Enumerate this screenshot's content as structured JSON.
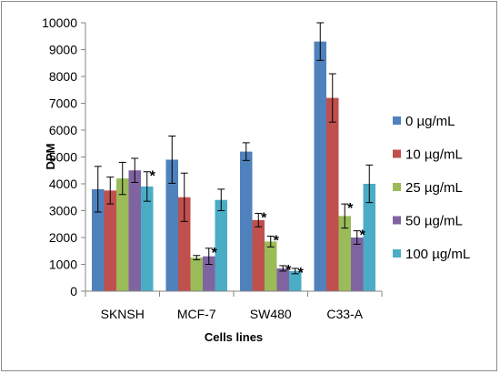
{
  "chart_data": {
    "type": "bar",
    "title": "",
    "xlabel": "Cells lines",
    "ylabel": "DPM",
    "ylim": [
      0,
      10000
    ],
    "yticks": [
      "0",
      "1000",
      "2000",
      "3000",
      "4000",
      "5000",
      "6000",
      "7000",
      "8000",
      "9000",
      "10000"
    ],
    "grid": false,
    "legend_position": "right",
    "categories": [
      "SKNSH",
      "MCF-7",
      "SW480",
      "C33-A"
    ],
    "series": [
      {
        "name": "0 µg/mL",
        "color": "#4F81BD",
        "values": [
          3800,
          4900,
          5200,
          9300
        ],
        "errors": [
          850,
          880,
          330,
          700
        ],
        "significant": [
          false,
          false,
          false,
          false
        ]
      },
      {
        "name": "10 µg/mL",
        "color": "#C0504D",
        "values": [
          3750,
          3500,
          2650,
          7200
        ],
        "errors": [
          500,
          900,
          250,
          900
        ],
        "significant": [
          false,
          false,
          true,
          false
        ]
      },
      {
        "name": "25 µg/mL",
        "color": "#9BBB59",
        "values": [
          4200,
          1250,
          1850,
          2800
        ],
        "errors": [
          600,
          80,
          200,
          450
        ],
        "significant": [
          false,
          false,
          true,
          true
        ]
      },
      {
        "name": "50 µg/mL",
        "color": "#8064A2",
        "values": [
          4500,
          1300,
          850,
          2000
        ],
        "errors": [
          450,
          300,
          100,
          250
        ],
        "significant": [
          false,
          true,
          true,
          true
        ]
      },
      {
        "name": "100 µg/mL",
        "color": "#4BACC6",
        "values": [
          3900,
          3400,
          750,
          4000
        ],
        "errors": [
          550,
          400,
          100,
          700
        ],
        "significant": [
          true,
          false,
          true,
          false
        ]
      }
    ],
    "significance_marker": "*"
  }
}
